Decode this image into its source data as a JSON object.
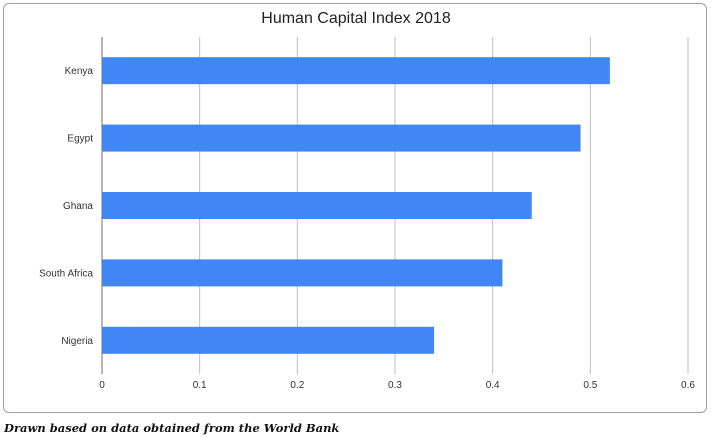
{
  "chart_data": {
    "type": "bar",
    "orientation": "horizontal",
    "title": "Human Capital Index 2018",
    "xlabel": "",
    "ylabel": "",
    "categories": [
      "Kenya",
      "Egypt",
      "Ghana",
      "South Africa",
      "Nigeria"
    ],
    "values": [
      0.52,
      0.49,
      0.44,
      0.41,
      0.34
    ],
    "xlim": [
      0,
      0.6
    ],
    "x_ticks": [
      "0",
      "0.1",
      "0.2",
      "0.3",
      "0.4",
      "0.5",
      "0.6"
    ],
    "grid": true,
    "legend": "none",
    "bar_color": "#4285f4"
  },
  "caption": "Drawn based on data obtained from the World Bank"
}
